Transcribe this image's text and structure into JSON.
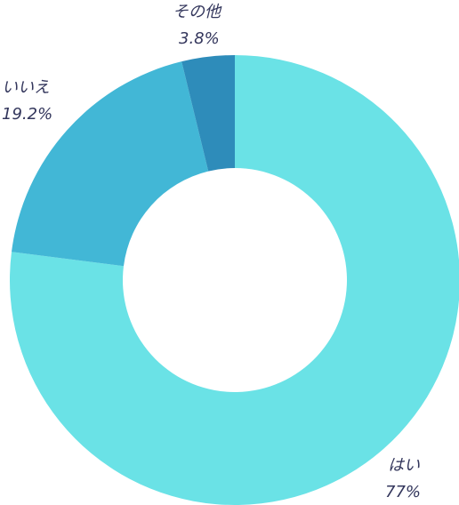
{
  "chart_data": {
    "type": "pie",
    "variant": "donut",
    "title": "",
    "slices": [
      {
        "label": "はい",
        "value": 77,
        "value_label": "77%",
        "color": "#6ae2e6"
      },
      {
        "label": "いいえ",
        "value": 19.2,
        "value_label": "19.2%",
        "color": "#42b7d6"
      },
      {
        "label": "その他",
        "value": 3.8,
        "value_label": "3.8%",
        "color": "#2e8cba"
      }
    ],
    "legend": "none",
    "start_angle": "top",
    "direction": "clockwise"
  }
}
